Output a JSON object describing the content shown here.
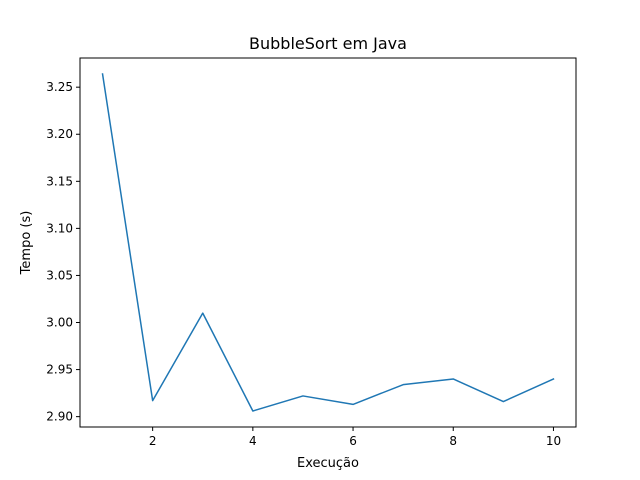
{
  "chart_data": {
    "type": "line",
    "title": "BubbleSort em Java",
    "xlabel": "Execução",
    "ylabel": "Tempo (s)",
    "x": [
      1,
      2,
      3,
      4,
      5,
      6,
      7,
      8,
      9,
      10
    ],
    "series": [
      {
        "values": [
          3.264,
          2.917,
          3.01,
          2.906,
          2.922,
          2.913,
          2.934,
          2.94,
          2.916,
          2.94
        ],
        "color": "#1f77b4"
      }
    ],
    "xlim": [
      0.55,
      10.45
    ],
    "ylim": [
      2.889,
      3.281
    ],
    "xticks": [
      2,
      4,
      6,
      8,
      10
    ],
    "xtick_labels": [
      "2",
      "4",
      "6",
      "8",
      "10"
    ],
    "yticks": [
      2.9,
      2.95,
      3.0,
      3.05,
      3.1,
      3.15,
      3.2,
      3.25
    ],
    "ytick_labels": [
      "2.90",
      "2.95",
      "3.00",
      "3.05",
      "3.10",
      "3.15",
      "3.20",
      "3.25"
    ],
    "grid": false,
    "legend": "none"
  }
}
